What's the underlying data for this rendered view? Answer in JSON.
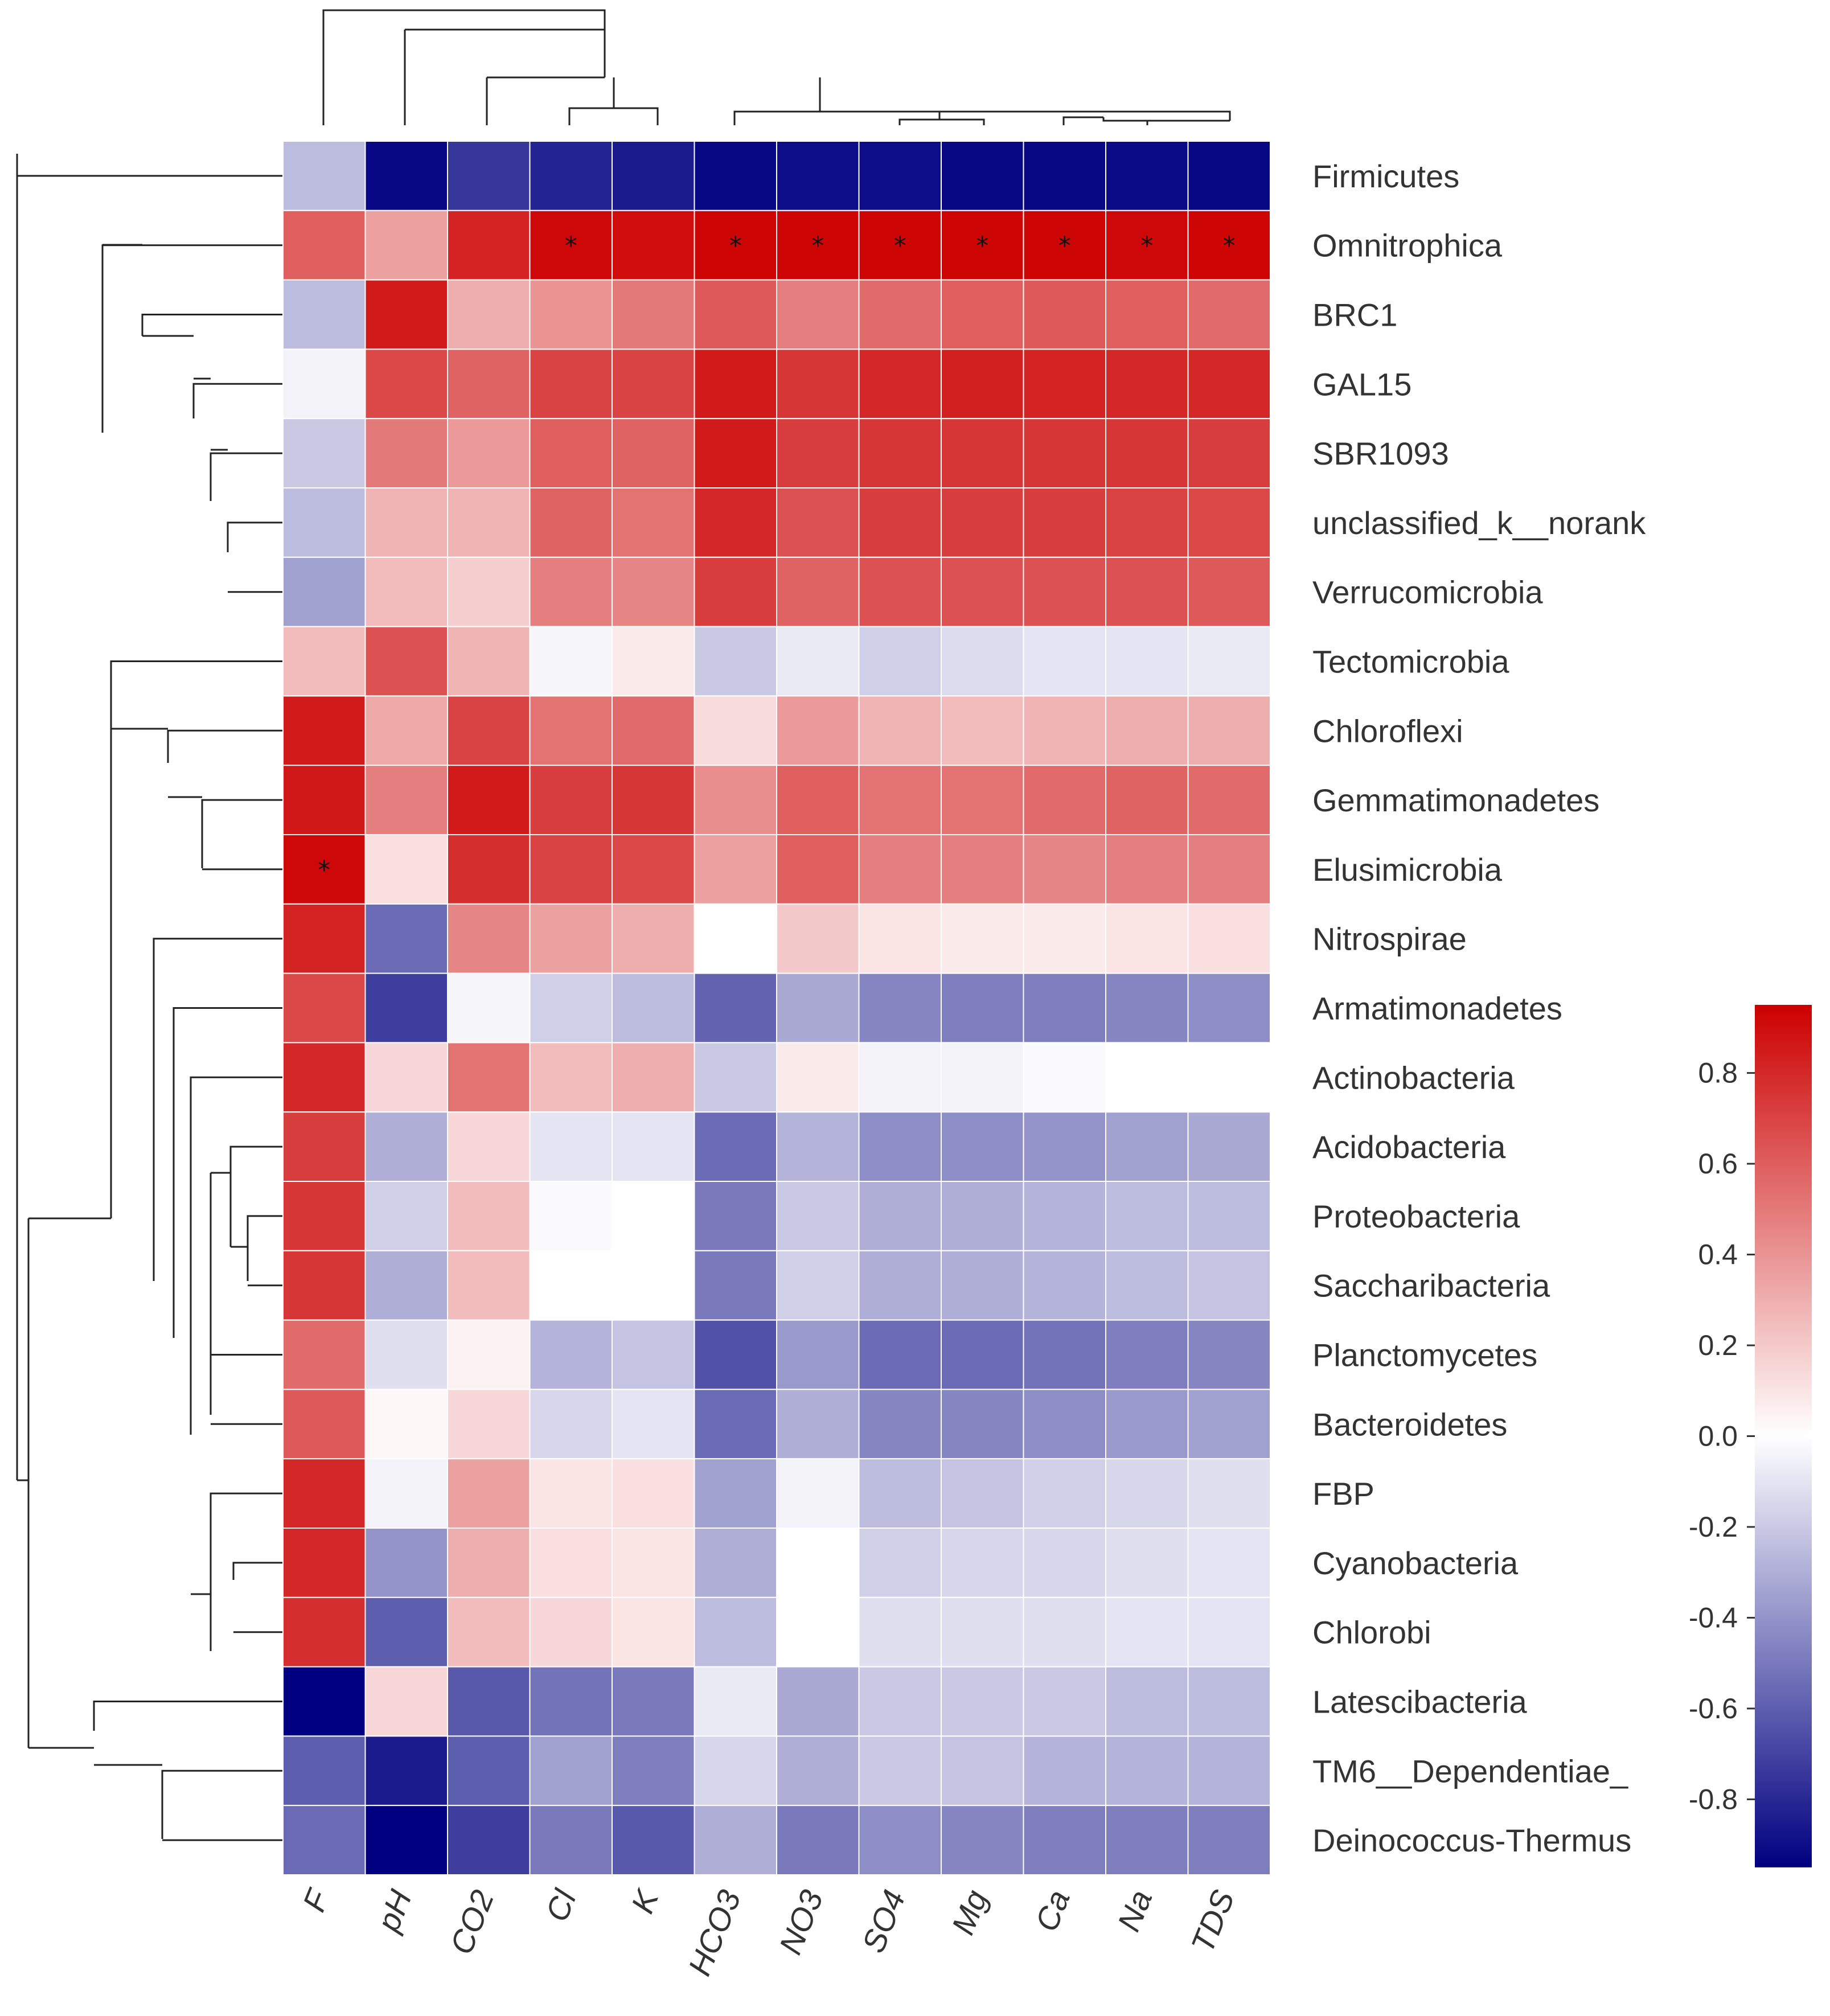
{
  "chart_data": {
    "type": "heatmap",
    "title": "",
    "columns": [
      "F",
      "pH",
      "CO2",
      "Cl",
      "K",
      "HCO3",
      "NO3",
      "SO4",
      "Mg",
      "Ca",
      "Na",
      "TDS"
    ],
    "rows": [
      "Firmicutes",
      "Omnitrophica",
      "BRC1",
      "GAL15",
      "SBR1093",
      "unclassified_k__norank",
      "Verrucomicrobia",
      "Tectomicrobia",
      "Chloroflexi",
      "Gemmatimonadetes",
      "Elusimicrobia",
      "Nitrospirae",
      "Armatimonadetes",
      "Actinobacteria",
      "Acidobacteria",
      "Proteobacteria",
      "Saccharibacteria",
      "Planctomycetes",
      "Bacteroidetes",
      "FBP",
      "Cyanobacteria",
      "Chlorobi",
      "Latescibacteria",
      "TM6__Dependentiae_",
      "Deinococcus-Thermus"
    ],
    "values": [
      [
        -0.25,
        -0.92,
        -0.75,
        -0.82,
        -0.85,
        -0.92,
        -0.9,
        -0.9,
        -0.92,
        -0.92,
        -0.91,
        -0.92
      ],
      [
        0.6,
        0.35,
        0.82,
        0.92,
        0.9,
        0.93,
        0.93,
        0.93,
        0.93,
        0.93,
        0.92,
        0.93
      ],
      [
        -0.25,
        0.85,
        0.3,
        0.4,
        0.5,
        0.62,
        0.48,
        0.55,
        0.6,
        0.62,
        0.6,
        0.55
      ],
      [
        -0.05,
        0.68,
        0.58,
        0.7,
        0.7,
        0.85,
        0.75,
        0.8,
        0.83,
        0.82,
        0.8,
        0.8
      ],
      [
        -0.2,
        0.5,
        0.38,
        0.6,
        0.58,
        0.85,
        0.72,
        0.75,
        0.75,
        0.75,
        0.75,
        0.72
      ],
      [
        -0.25,
        0.28,
        0.28,
        0.58,
        0.52,
        0.8,
        0.65,
        0.72,
        0.72,
        0.72,
        0.7,
        0.68
      ],
      [
        -0.35,
        0.25,
        0.18,
        0.48,
        0.45,
        0.72,
        0.58,
        0.65,
        0.65,
        0.65,
        0.65,
        0.62
      ],
      [
        0.25,
        0.65,
        0.28,
        -0.03,
        0.08,
        -0.2,
        -0.08,
        -0.18,
        -0.13,
        -0.1,
        -0.1,
        -0.08
      ],
      [
        0.85,
        0.32,
        0.7,
        0.52,
        0.55,
        0.13,
        0.38,
        0.28,
        0.25,
        0.28,
        0.3,
        0.3
      ],
      [
        0.86,
        0.48,
        0.85,
        0.72,
        0.75,
        0.42,
        0.6,
        0.52,
        0.52,
        0.55,
        0.58,
        0.55
      ],
      [
        0.92,
        0.12,
        0.78,
        0.7,
        0.68,
        0.35,
        0.6,
        0.48,
        0.48,
        0.45,
        0.48,
        0.48
      ],
      [
        0.82,
        -0.55,
        0.45,
        0.35,
        0.3,
        0.0,
        0.2,
        0.1,
        0.08,
        0.08,
        0.1,
        0.12
      ],
      [
        0.68,
        -0.72,
        -0.03,
        -0.18,
        -0.25,
        -0.58,
        -0.32,
        -0.45,
        -0.48,
        -0.48,
        -0.45,
        -0.42
      ],
      [
        0.8,
        0.15,
        0.52,
        0.25,
        0.3,
        -0.2,
        0.08,
        -0.05,
        -0.05,
        -0.02,
        0.0,
        0.0
      ],
      [
        0.72,
        -0.3,
        0.15,
        -0.1,
        -0.1,
        -0.55,
        -0.28,
        -0.42,
        -0.42,
        -0.4,
        -0.35,
        -0.32
      ],
      [
        0.75,
        -0.18,
        0.25,
        -0.02,
        0.0,
        -0.5,
        -0.2,
        -0.3,
        -0.3,
        -0.28,
        -0.25,
        -0.25
      ],
      [
        0.75,
        -0.3,
        0.25,
        0.0,
        0.0,
        -0.5,
        -0.18,
        -0.3,
        -0.3,
        -0.28,
        -0.25,
        -0.22
      ],
      [
        0.55,
        -0.12,
        0.05,
        -0.28,
        -0.22,
        -0.65,
        -0.38,
        -0.55,
        -0.55,
        -0.52,
        -0.48,
        -0.45
      ],
      [
        0.62,
        0.03,
        0.15,
        -0.15,
        -0.1,
        -0.55,
        -0.3,
        -0.45,
        -0.45,
        -0.42,
        -0.38,
        -0.35
      ],
      [
        0.8,
        -0.05,
        0.35,
        0.1,
        0.12,
        -0.35,
        -0.05,
        -0.25,
        -0.22,
        -0.18,
        -0.15,
        -0.12
      ],
      [
        0.8,
        -0.4,
        0.3,
        0.12,
        0.1,
        -0.3,
        0.0,
        -0.18,
        -0.15,
        -0.15,
        -0.12,
        -0.1
      ],
      [
        0.78,
        -0.6,
        0.25,
        0.15,
        0.1,
        -0.25,
        0.0,
        -0.12,
        -0.12,
        -0.12,
        -0.1,
        -0.1
      ],
      [
        -0.95,
        0.15,
        -0.62,
        -0.52,
        -0.5,
        -0.08,
        -0.32,
        -0.2,
        -0.2,
        -0.2,
        -0.25,
        -0.25
      ],
      [
        -0.6,
        -0.85,
        -0.6,
        -0.35,
        -0.48,
        -0.15,
        -0.3,
        -0.2,
        -0.22,
        -0.28,
        -0.28,
        -0.28
      ],
      [
        -0.55,
        -0.95,
        -0.72,
        -0.5,
        -0.62,
        -0.3,
        -0.5,
        -0.42,
        -0.45,
        -0.48,
        -0.48,
        -0.48
      ]
    ],
    "significant": [
      [
        1,
        3
      ],
      [
        1,
        5
      ],
      [
        1,
        6
      ],
      [
        1,
        7
      ],
      [
        1,
        8
      ],
      [
        1,
        9
      ],
      [
        1,
        10
      ],
      [
        1,
        11
      ],
      [
        10,
        0
      ]
    ],
    "significance_mark": "*",
    "colorbar": {
      "range": [
        -0.95,
        0.95
      ],
      "ticks": [
        0.8,
        0.6,
        0.4,
        0.2,
        0.0,
        -0.2,
        -0.4,
        -0.6,
        -0.8
      ],
      "tick_labels": [
        "0.8",
        "0.6",
        "0.4",
        "0.2",
        "0.0",
        "-0.2",
        "-0.4",
        "-0.6",
        "-0.8"
      ],
      "colors": {
        "low": "#000080",
        "mid": "#ffffff",
        "high": "#cc0000"
      }
    },
    "xlabel": "",
    "ylabel": "",
    "legend_position": "right"
  }
}
